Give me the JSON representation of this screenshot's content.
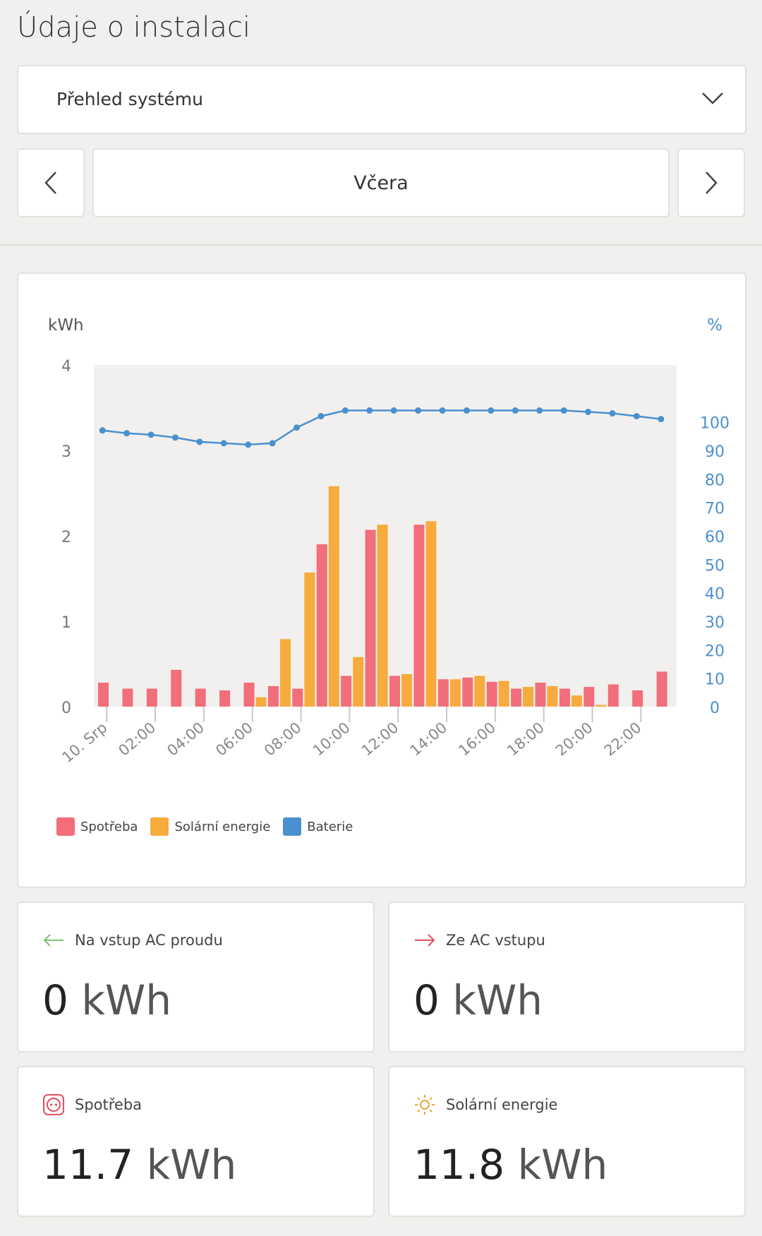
{
  "page": {
    "title": "Údaje o instalaci"
  },
  "dropdown": {
    "selected": "Přehled systému"
  },
  "period": {
    "label": "Včera"
  },
  "colors": {
    "consumption": "#f26e7a",
    "solar": "#f6ab3c",
    "battery": "#4a90d0"
  },
  "chart_data": {
    "type": "bar",
    "title": "",
    "y_left_label": "kWh",
    "y_right_label": "%",
    "y_left_ticks": [
      "0",
      "1",
      "2",
      "3",
      "4"
    ],
    "y_right_ticks": [
      "0",
      "10",
      "20",
      "30",
      "40",
      "50",
      "60",
      "70",
      "80",
      "90",
      "100"
    ],
    "ylim_left": [
      0,
      4
    ],
    "ylim_right": [
      0,
      120
    ],
    "x_tick_labels": [
      "10. Srp",
      "02:00",
      "04:00",
      "06:00",
      "08:00",
      "10:00",
      "12:00",
      "14:00",
      "16:00",
      "18:00",
      "20:00",
      "22:00"
    ],
    "hours": [
      0,
      1,
      2,
      3,
      4,
      5,
      6,
      7,
      8,
      9,
      10,
      11,
      12,
      13,
      14,
      15,
      16,
      17,
      18,
      19,
      20,
      21,
      22,
      23
    ],
    "series": [
      {
        "name": "Spotřeba",
        "values": [
          0.28,
          0.21,
          0.21,
          0.43,
          0.21,
          0.19,
          0.28,
          0.24,
          0.21,
          1.9,
          0.36,
          2.07,
          0.36,
          2.13,
          0.32,
          0.34,
          0.29,
          0.21,
          0.28,
          0.21,
          0.23,
          0.26,
          0.19,
          0.41
        ]
      },
      {
        "name": "Solární energie",
        "values": [
          0,
          0,
          0,
          0,
          0,
          0,
          0.11,
          0.79,
          1.57,
          2.58,
          0.58,
          2.13,
          0.38,
          2.17,
          0.32,
          0.36,
          0.3,
          0.23,
          0.24,
          0.13,
          0.02,
          0,
          0,
          0
        ]
      },
      {
        "name": "Baterie",
        "values": [
          97,
          96,
          95.5,
          94.5,
          93,
          92.5,
          92,
          92.5,
          98,
          102,
          104,
          104,
          104,
          104,
          104,
          104,
          104,
          104,
          104,
          104,
          103.5,
          103,
          102,
          101
        ]
      }
    ],
    "legend": [
      "Spotřeba",
      "Solární energie",
      "Baterie"
    ]
  },
  "stats": [
    {
      "label": "Na vstup AC proudu",
      "value": "0",
      "unit": "kWh",
      "icon": "arrow-left-icon"
    },
    {
      "label": "Ze AC vstupu",
      "value": "0",
      "unit": "kWh",
      "icon": "arrow-right-icon"
    },
    {
      "label": "Spotřeba",
      "value": "11.7",
      "unit": "kWh",
      "icon": "socket-icon"
    },
    {
      "label": "Solární energie",
      "value": "11.8",
      "unit": "kWh",
      "icon": "sun-icon"
    }
  ]
}
